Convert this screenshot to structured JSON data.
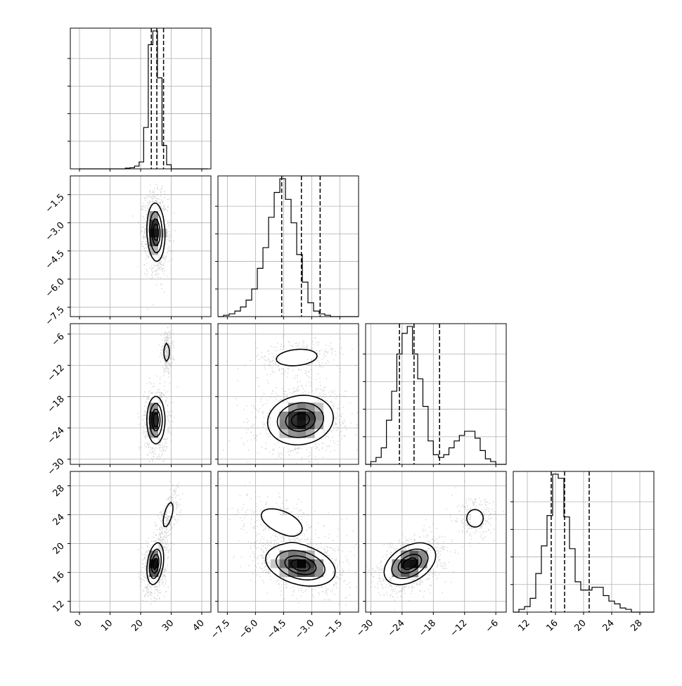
{
  "chart_data": {
    "type": "corner",
    "title": "",
    "grid": true,
    "variables": [
      {
        "xlim": [
          -3,
          43
        ],
        "ticks": [
          0,
          10,
          20,
          30,
          40
        ],
        "tick_labels": [
          "0",
          "10",
          "20",
          "30",
          "40"
        ],
        "quantiles": [
          23.5,
          25.3,
          27.5
        ],
        "hist_bin_edges": [
          0,
          1.5,
          3,
          4.5,
          6,
          7.5,
          9,
          10.5,
          12,
          13.5,
          15,
          16.5,
          18,
          19.5,
          21,
          22.5,
          24,
          25.5,
          27,
          28.5,
          30,
          31.5,
          33,
          34.5,
          36,
          37.5,
          39,
          40.5,
          42
        ],
        "hist_counts": [
          0,
          0,
          0,
          0,
          0,
          0,
          0,
          0,
          0,
          0,
          0.5,
          0.8,
          2,
          5,
          30,
          90,
          100,
          66,
          17,
          3,
          0,
          0,
          0,
          0,
          0,
          0,
          0,
          0
        ]
      },
      {
        "xlim": [
          -8.0,
          -0.5
        ],
        "ticks": [
          -7.5,
          -6.0,
          -4.5,
          -3.0,
          -1.5
        ],
        "tick_labels": [
          "−7.5",
          "−6.0",
          "−4.5",
          "−3.0",
          "−1.5"
        ],
        "quantiles": [
          -4.6,
          -3.55,
          -2.55
        ],
        "hist_bin_edges": [
          -8.0,
          -7.7,
          -7.4,
          -7.1,
          -6.8,
          -6.5,
          -6.2,
          -5.9,
          -5.6,
          -5.3,
          -5.0,
          -4.7,
          -4.4,
          -4.1,
          -3.8,
          -3.5,
          -3.2,
          -2.9,
          -2.6,
          -2.3,
          -2.0,
          -1.7,
          -1.4,
          -1.1,
          -0.8,
          -0.5
        ],
        "hist_counts": [
          0,
          1,
          2,
          4,
          7,
          12,
          20,
          35,
          50,
          72,
          90,
          100,
          85,
          68,
          45,
          25,
          10,
          4,
          2,
          1,
          0,
          0,
          0,
          0,
          0
        ],
        "hist_shift": 0
      },
      {
        "xlim": [
          -31,
          -4
        ],
        "ticks": [
          -30,
          -24,
          -18,
          -12,
          -6
        ],
        "tick_labels": [
          "−30",
          "−24",
          "−18",
          "−12",
          "−6"
        ],
        "quantiles": [
          -24.5,
          -21.7,
          -16.8
        ],
        "hist_bin_edges": [
          -31,
          -30,
          -29,
          -28,
          -27,
          -26,
          -25,
          -24,
          -23,
          -22,
          -21,
          -20,
          -19,
          -18,
          -17,
          -16,
          -15,
          -14,
          -13,
          -12,
          -11,
          -10,
          -9,
          -8,
          -7,
          -6,
          -5,
          -4
        ],
        "hist_counts": [
          0,
          2,
          5,
          12,
          32,
          53,
          80,
          95,
          100,
          80,
          62,
          42,
          17,
          7,
          5,
          7,
          12,
          17,
          21,
          24,
          24,
          19,
          10,
          4,
          2,
          0,
          0
        ]
      },
      {
        "xlim": [
          10,
          30
        ],
        "ticks": [
          12,
          16,
          20,
          24,
          28
        ],
        "tick_labels": [
          "12",
          "16",
          "20",
          "24",
          "28"
        ],
        "quantiles": [
          15.4,
          17.3,
          20.8
        ],
        "hist_bin_edges": [
          10,
          10.8,
          11.6,
          12.4,
          13.2,
          14.0,
          14.8,
          15.6,
          16.4,
          17.2,
          18.0,
          18.8,
          19.6,
          20.4,
          21.2,
          22.0,
          22.8,
          23.6,
          24.4,
          25.2,
          26.0,
          26.8,
          27.6,
          28.4,
          29.2,
          30.0
        ],
        "hist_counts": [
          0,
          2,
          4,
          10,
          28,
          48,
          70,
          100,
          97,
          69,
          46,
          22,
          16,
          16,
          18,
          18,
          12,
          8,
          6,
          3,
          2,
          0,
          0,
          0,
          0
        ]
      }
    ],
    "y_tick_labels": {
      "row1": [
        "−1.5",
        "−3.0",
        "−4.5",
        "−6.0",
        "−7.5"
      ],
      "row2": [
        "−6",
        "−12",
        "−18",
        "−24",
        "−30"
      ],
      "row3": [
        "28",
        "24",
        "20",
        "16",
        "12"
      ]
    },
    "panels_2d": [
      {
        "row": 1,
        "col": 0,
        "modes": [
          {
            "x": 25,
            "y": -3.5,
            "sx": 1.4,
            "sy": 0.75,
            "rho": -0.1,
            "w": 1.0
          }
        ]
      },
      {
        "row": 2,
        "col": 0,
        "modes": [
          {
            "x": 25,
            "y": -22.5,
            "sx": 1.4,
            "sy": 2.2,
            "rho": 0.0,
            "w": 0.8
          },
          {
            "x": 28.5,
            "y": -9.5,
            "sx": 0.7,
            "sy": 1.4,
            "rho": 0.0,
            "w": 0.2
          }
        ]
      },
      {
        "row": 2,
        "col": 1,
        "modes": [
          {
            "x": -3.6,
            "y": -22.5,
            "sx": 0.85,
            "sy": 2.3,
            "rho": 0.1,
            "w": 0.8
          },
          {
            "x": -3.8,
            "y": -10.5,
            "sx": 0.9,
            "sy": 1.3,
            "rho": 0.2,
            "w": 0.2
          }
        ]
      },
      {
        "row": 3,
        "col": 0,
        "modes": [
          {
            "x": 24.8,
            "y": 17.2,
            "sx": 1.3,
            "sy": 1.4,
            "rho": 0.3,
            "w": 0.8
          },
          {
            "x": 29,
            "y": 24,
            "sx": 1.3,
            "sy": 1.4,
            "rho": 0.6,
            "w": 0.2
          }
        ]
      },
      {
        "row": 3,
        "col": 1,
        "modes": [
          {
            "x": -3.6,
            "y": 17.0,
            "sx": 0.9,
            "sy": 1.4,
            "rho": -0.3,
            "w": 0.8
          },
          {
            "x": -4.6,
            "y": 23.0,
            "sx": 0.9,
            "sy": 1.5,
            "rho": -0.5,
            "w": 0.2
          }
        ]
      },
      {
        "row": 3,
        "col": 2,
        "modes": [
          {
            "x": -22.5,
            "y": 17.2,
            "sx": 2.4,
            "sy": 1.4,
            "rho": 0.4,
            "w": 0.8
          },
          {
            "x": -10,
            "y": 23.5,
            "sx": 1.3,
            "sy": 1.0,
            "rho": 0.0,
            "w": 0.2
          }
        ]
      }
    ],
    "contour_levels": [
      0.12,
      0.35,
      0.65,
      0.85
    ]
  },
  "colors": {
    "frame": "#000000",
    "grid": "#b0b0b0",
    "scatter": "#888888",
    "fill_dark": "#000000"
  }
}
